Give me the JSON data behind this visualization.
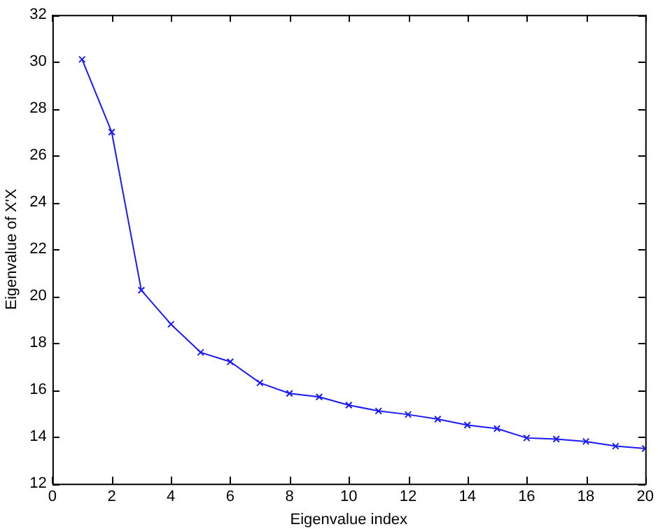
{
  "chart_data": {
    "type": "line",
    "xlabel": "Eigenvalue index",
    "ylabel": "Eigenvalue of X'X",
    "x": [
      1,
      2,
      3,
      4,
      5,
      6,
      7,
      8,
      9,
      10,
      11,
      12,
      13,
      14,
      15,
      16,
      17,
      18,
      19,
      20
    ],
    "series": [
      {
        "color": "#1a1aff",
        "values": [
          30.1,
          27.0,
          20.25,
          18.8,
          17.6,
          17.2,
          16.3,
          15.85,
          15.7,
          15.35,
          15.1,
          14.95,
          14.75,
          14.5,
          14.35,
          13.95,
          13.9,
          13.8,
          13.6,
          13.5
        ]
      }
    ],
    "xlim": [
      0,
      20
    ],
    "xticks": [
      0,
      2,
      4,
      6,
      8,
      10,
      12,
      14,
      16,
      18,
      20
    ],
    "ylim": [
      12,
      32
    ],
    "yticks": [
      12,
      14,
      16,
      18,
      20,
      22,
      24,
      26,
      28,
      30,
      32
    ],
    "grid": false,
    "legend": false,
    "marker": "cross",
    "line_style": "solid"
  }
}
